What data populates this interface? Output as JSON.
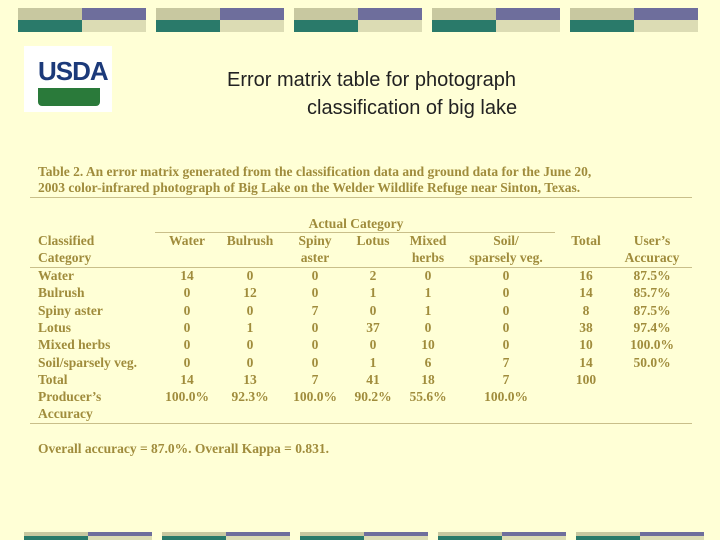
{
  "logo": "USDA",
  "title_lines": [
    "Error matrix table for photograph",
    "classification of big lake"
  ],
  "table": {
    "caption_lines": [
      "Table 2.  An error matrix generated from the classification data and ground data for the June 20,",
      "2003 color-infrared photograph of Big Lake on the Welder Wildlife Refuge near Sinton, Texas."
    ],
    "group_header": "Actual Category",
    "columns": [
      [
        "Classified",
        "Category"
      ],
      [
        "Water"
      ],
      [
        "Bulrush"
      ],
      [
        "Spiny",
        "aster"
      ],
      [
        "Lotus"
      ],
      [
        "Mixed",
        "herbs"
      ],
      [
        "Soil/",
        "sparsely veg."
      ],
      [
        "Total"
      ],
      [
        "User’s",
        "Accuracy"
      ]
    ],
    "rows": [
      [
        [
          "Water"
        ],
        14,
        0,
        0,
        2,
        0,
        0,
        16,
        "87.5%"
      ],
      [
        [
          "Bulrush"
        ],
        0,
        12,
        0,
        1,
        1,
        0,
        14,
        "85.7%"
      ],
      [
        [
          "Spiny aster"
        ],
        0,
        0,
        7,
        0,
        1,
        0,
        8,
        "87.5%"
      ],
      [
        [
          "Lotus"
        ],
        0,
        1,
        0,
        37,
        0,
        0,
        38,
        "97.4%"
      ],
      [
        [
          "Mixed herbs"
        ],
        0,
        0,
        0,
        0,
        10,
        0,
        10,
        "100.0%"
      ],
      [
        [
          "Soil/sparsely veg."
        ],
        0,
        0,
        0,
        1,
        6,
        7,
        14,
        "50.0%"
      ],
      [
        [
          "Total"
        ],
        14,
        13,
        7,
        41,
        18,
        7,
        100
      ],
      [
        [
          "Producer’s",
          "Accuracy"
        ],
        "100.0%",
        "92.3%",
        "100.0%",
        "90.2%",
        "55.6%",
        "100.0%"
      ]
    ],
    "footer": "Overall accuracy = 87.0%.  Overall Kappa = 0.831."
  }
}
